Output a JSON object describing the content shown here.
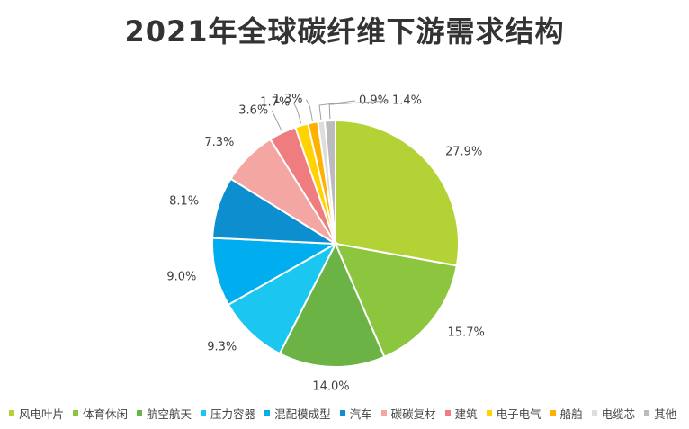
{
  "chart_data": {
    "type": "pie",
    "title": "2021年全球碳纤维下游需求结构",
    "slices": [
      {
        "label": "风电叶片",
        "value": 27.9,
        "value_label": "27.9%",
        "color": "#B2D235"
      },
      {
        "label": "体育休闲",
        "value": 15.7,
        "value_label": "15.7%",
        "color": "#8CC63F"
      },
      {
        "label": "航空航天",
        "value": 14.0,
        "value_label": "14.0%",
        "color": "#6AB344"
      },
      {
        "label": "压力容器",
        "value": 9.3,
        "value_label": "9.3%",
        "color": "#1BC7F0"
      },
      {
        "label": "混配模成型",
        "value": 9.0,
        "value_label": "9.0%",
        "color": "#00AEEF"
      },
      {
        "label": "汽车",
        "value": 8.1,
        "value_label": "8.1%",
        "color": "#0D8ECF"
      },
      {
        "label": "碳碳复材",
        "value": 7.3,
        "value_label": "7.3%",
        "color": "#F4A6A3"
      },
      {
        "label": "建筑",
        "value": 3.6,
        "value_label": "3.6%",
        "color": "#EF7C7E"
      },
      {
        "label": "电子电气",
        "value": 1.7,
        "value_label": "1.7%",
        "color": "#FFD200"
      },
      {
        "label": "船舶",
        "value": 1.3,
        "value_label": "1.3%",
        "color": "#FFB000"
      },
      {
        "label": "电缆芯",
        "value": 0.9,
        "value_label": "0.9%",
        "color": "#DDDDDD"
      },
      {
        "label": "其他",
        "value": 1.4,
        "value_label": "1.4%",
        "color": "#BBBBBB"
      }
    ],
    "legend_position": "bottom"
  }
}
